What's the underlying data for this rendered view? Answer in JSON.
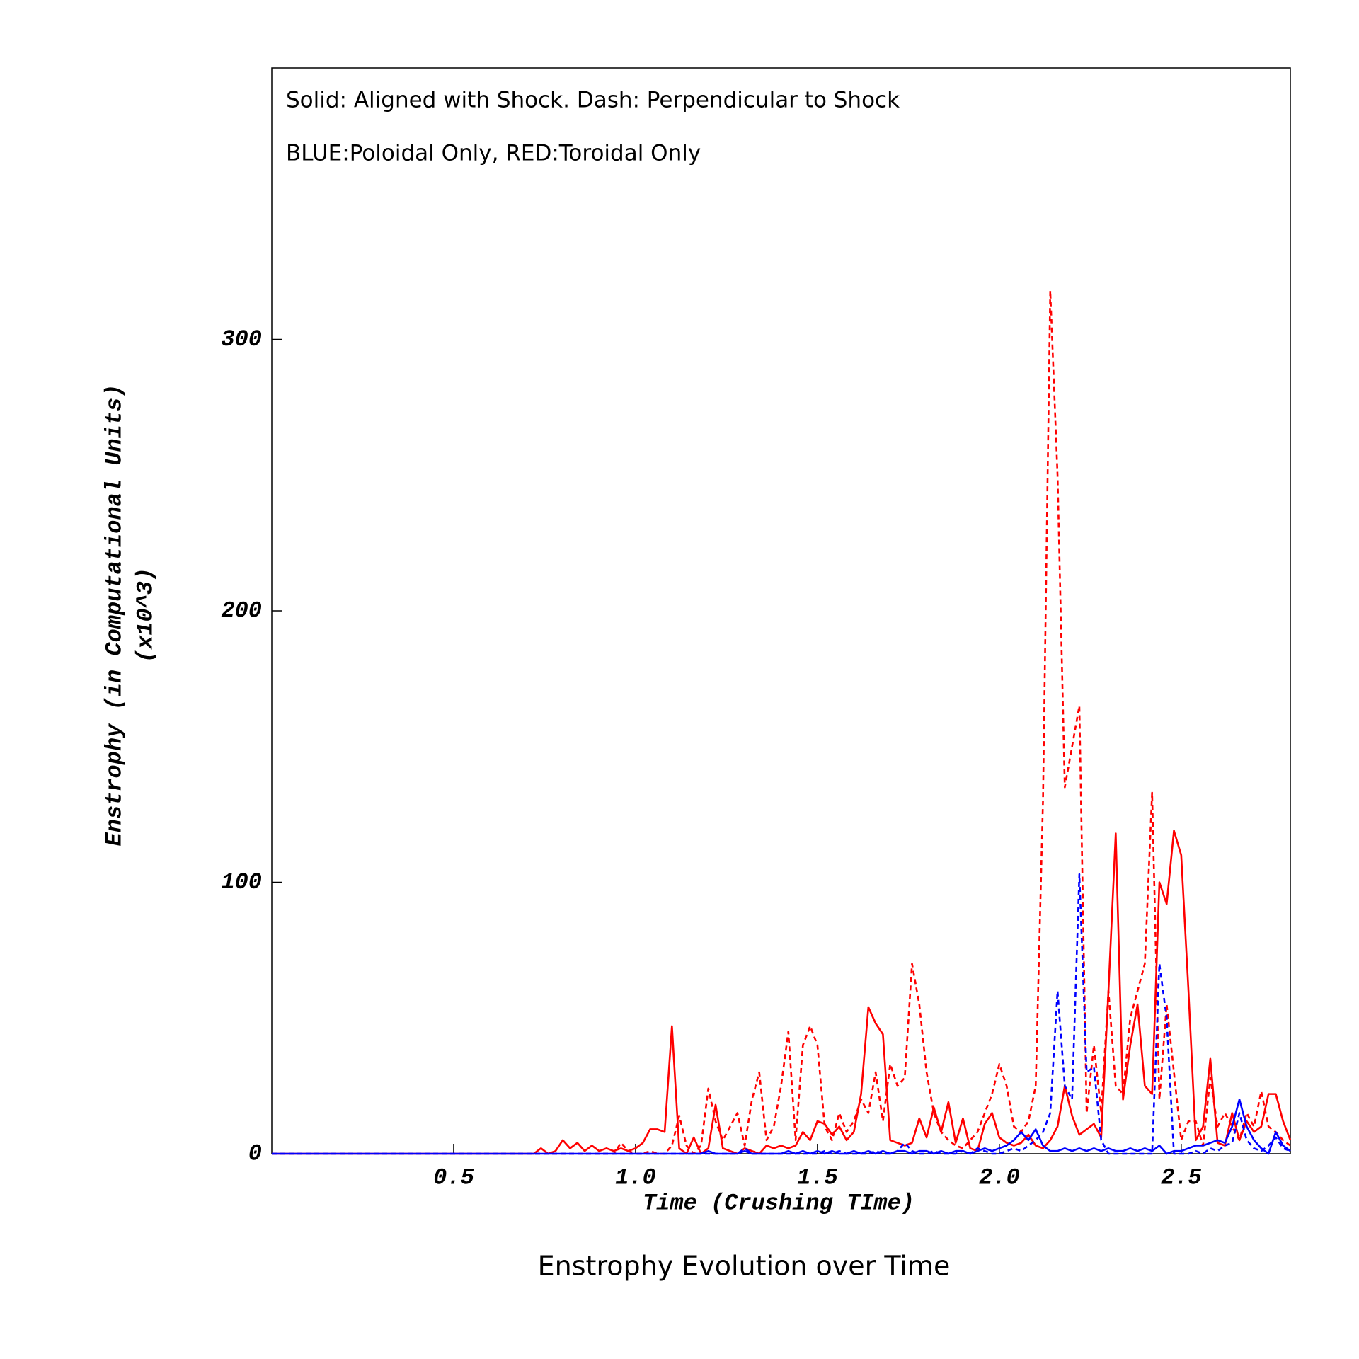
{
  "chart_data": {
    "type": "line",
    "title": "Enstrophy Evolution over Time",
    "xlabel": "Time (Crushing TIme)",
    "ylabel": [
      "Enstrophy (in Computational Units)",
      "(x10^3)"
    ],
    "annotations": [
      "Solid: Aligned with Shock. Dash: Perpendicular to Shock",
      "BLUE:Poloidal Only, RED:Toroidal Only"
    ],
    "xlim": [
      0,
      2.8
    ],
    "ylim": [
      0,
      400
    ],
    "xticks": [
      0.5,
      {
        "value": 1,
        "label": "1.0"
      },
      1.5,
      {
        "value": 2,
        "label": "2.0"
      },
      2.5
    ],
    "yticks": [
      0,
      100,
      200,
      300
    ],
    "x": [
      0,
      0.7,
      0.72,
      0.74,
      0.76,
      0.78,
      0.8,
      0.82,
      0.84,
      0.86,
      0.88,
      0.9,
      0.92,
      0.94,
      0.96,
      0.98,
      1.0,
      1.02,
      1.04,
      1.06,
      1.08,
      1.1,
      1.12,
      1.14,
      1.16,
      1.18,
      1.2,
      1.22,
      1.24,
      1.26,
      1.28,
      1.3,
      1.32,
      1.34,
      1.36,
      1.38,
      1.4,
      1.42,
      1.44,
      1.46,
      1.48,
      1.5,
      1.52,
      1.54,
      1.56,
      1.58,
      1.6,
      1.62,
      1.64,
      1.66,
      1.68,
      1.7,
      1.72,
      1.74,
      1.76,
      1.78,
      1.8,
      1.82,
      1.84,
      1.86,
      1.88,
      1.9,
      1.92,
      1.94,
      1.96,
      1.98,
      2.0,
      2.02,
      2.04,
      2.06,
      2.08,
      2.1,
      2.12,
      2.14,
      2.16,
      2.18,
      2.2,
      2.22,
      2.24,
      2.26,
      2.28,
      2.3,
      2.32,
      2.34,
      2.36,
      2.38,
      2.4,
      2.42,
      2.44,
      2.46,
      2.48,
      2.5,
      2.52,
      2.54,
      2.56,
      2.58,
      2.6,
      2.62,
      2.64,
      2.66,
      2.68,
      2.7,
      2.72,
      2.74,
      2.76,
      2.78,
      2.8
    ],
    "series": [
      {
        "color": "#ff0000",
        "dash": false,
        "values": [
          0,
          0,
          0,
          2,
          0,
          1,
          5,
          2,
          4,
          1,
          3,
          1,
          2,
          1,
          2,
          1,
          2,
          4,
          9,
          9,
          8,
          47,
          2,
          0,
          6,
          0,
          2,
          18,
          2,
          1,
          0,
          2,
          1,
          0,
          3,
          2,
          3,
          2,
          3,
          8,
          5,
          12,
          11,
          7,
          10,
          5,
          8,
          22,
          54,
          48,
          44,
          5,
          4,
          3,
          4,
          13,
          6,
          17,
          8,
          19,
          4,
          13,
          2,
          1,
          11,
          15,
          6,
          4,
          3,
          4,
          7,
          3,
          2,
          5,
          10,
          25,
          14,
          7,
          9,
          11,
          6,
          60,
          118,
          20,
          40,
          55,
          25,
          22,
          100,
          92,
          119,
          110,
          60,
          5,
          10,
          35,
          4,
          3,
          15,
          5,
          12,
          8,
          10,
          22,
          22,
          12,
          5
        ]
      },
      {
        "color": "#ff0000",
        "dash": true,
        "values": [
          0,
          0,
          0,
          0,
          0,
          0,
          0,
          0,
          0,
          0,
          0,
          0,
          0,
          0,
          4,
          1,
          0,
          0,
          1,
          0,
          0,
          3,
          14,
          3,
          0,
          3,
          24,
          12,
          5,
          10,
          15,
          3,
          20,
          30,
          5,
          10,
          25,
          45,
          5,
          40,
          47,
          40,
          10,
          5,
          15,
          8,
          12,
          20,
          15,
          30,
          12,
          33,
          25,
          28,
          70,
          55,
          30,
          15,
          8,
          5,
          3,
          2,
          5,
          8,
          15,
          22,
          33,
          25,
          10,
          8,
          12,
          25,
          130,
          318,
          250,
          135,
          150,
          165,
          15,
          40,
          15,
          60,
          25,
          22,
          50,
          60,
          70,
          133,
          20,
          55,
          30,
          5,
          12,
          12,
          3,
          28,
          10,
          15,
          10,
          5,
          15,
          10,
          23,
          10,
          8,
          5,
          3
        ]
      },
      {
        "color": "#0000ff",
        "dash": false,
        "values": [
          0,
          0,
          0,
          0,
          0,
          0,
          0,
          0,
          0,
          0,
          0,
          0,
          0,
          0,
          0,
          0,
          0,
          0,
          0,
          0,
          0,
          0,
          0,
          0,
          0,
          0,
          1,
          0,
          0,
          0,
          0,
          1,
          0,
          0,
          0,
          0,
          0,
          1,
          0,
          1,
          0,
          1,
          0,
          1,
          0,
          0,
          1,
          0,
          1,
          0,
          1,
          0,
          1,
          1,
          0,
          1,
          1,
          0,
          1,
          0,
          1,
          1,
          0,
          1,
          2,
          1,
          2,
          3,
          5,
          8,
          5,
          9,
          3,
          1,
          1,
          2,
          1,
          2,
          1,
          2,
          1,
          2,
          1,
          1,
          2,
          1,
          2,
          1,
          3,
          0,
          1,
          1,
          2,
          3,
          3,
          4,
          5,
          4,
          10,
          20,
          10,
          5,
          2,
          0,
          8,
          3,
          1
        ]
      },
      {
        "color": "#0000ff",
        "dash": true,
        "values": [
          0,
          0,
          0,
          0,
          0,
          0,
          0,
          0,
          0,
          0,
          0,
          0,
          0,
          0,
          0,
          0,
          0,
          0,
          0,
          0,
          0,
          0,
          0,
          0,
          0,
          0,
          0,
          0,
          0,
          0,
          0,
          2,
          0,
          0,
          0,
          0,
          0,
          0,
          0,
          0,
          0,
          0,
          1,
          0,
          1,
          0,
          0,
          0,
          0,
          1,
          0,
          0,
          1,
          4,
          1,
          0,
          0,
          1,
          0,
          0,
          0,
          1,
          0,
          2,
          1,
          0,
          0,
          1,
          2,
          1,
          3,
          5,
          8,
          15,
          60,
          25,
          20,
          103,
          30,
          32,
          5,
          0,
          0,
          0,
          0,
          0,
          0,
          0,
          70,
          50,
          0,
          0,
          0,
          1,
          0,
          2,
          1,
          3,
          4,
          15,
          5,
          2,
          1,
          3,
          6,
          2,
          1
        ]
      }
    ]
  }
}
